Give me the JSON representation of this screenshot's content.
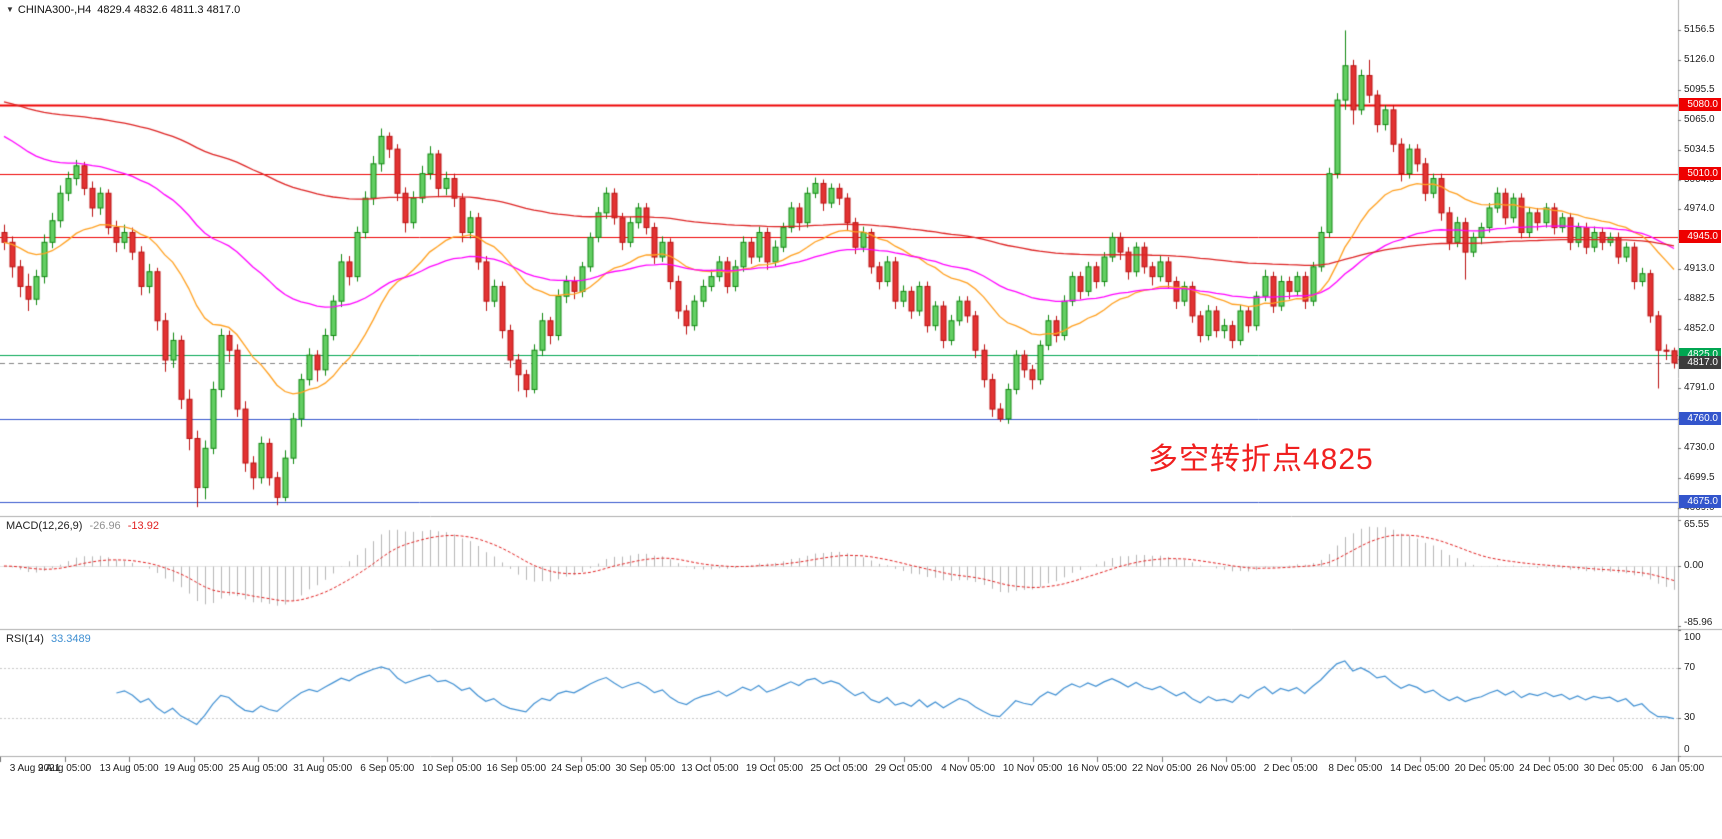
{
  "header": {
    "collapse_arrow": "▼",
    "symbol": "CHINA300-,H4",
    "ohlc": "4829.4 4832.6 4811.3 4817.0"
  },
  "chart_data": {
    "type": "candlestick",
    "symbol": "CHINA300-",
    "timeframe": "H4",
    "last_values": {
      "open": 4829.4,
      "high": 4832.6,
      "low": 4811.3,
      "close": 4817.0
    },
    "annotation": {
      "text": "多空转折点4825",
      "color": "#f02020"
    },
    "candle_colors": {
      "up_fill": "#63cf63",
      "up_border": "#118811",
      "down_fill": "#e23333",
      "down_border": "#bb1111"
    },
    "price_axis": {
      "ticks": [
        {
          "label": "5156.5",
          "value": 5156.5
        },
        {
          "label": "5126.0",
          "value": 5126.0
        },
        {
          "label": "5095.5",
          "value": 5095.5
        },
        {
          "label": "5065.0",
          "value": 5065.0
        },
        {
          "label": "5034.5",
          "value": 5034.5
        },
        {
          "label": "5004.0",
          "value": 5004.0
        },
        {
          "label": "4974.0",
          "value": 4974.0
        },
        {
          "label": "4943.5",
          "value": 4943.5
        },
        {
          "label": "4913.0",
          "value": 4913.0
        },
        {
          "label": "4882.5",
          "value": 4882.5
        },
        {
          "label": "4852.0",
          "value": 4852.0
        },
        {
          "label": "4821.5",
          "value": 4821.5
        },
        {
          "label": "4791.0",
          "value": 4791.0
        },
        {
          "label": "4760.5",
          "value": 4760.5
        },
        {
          "label": "4730.0",
          "value": 4730.0
        },
        {
          "label": "4699.5",
          "value": 4699.5
        },
        {
          "label": "4669.0",
          "value": 4669.0
        }
      ]
    },
    "time_axis": {
      "labels": [
        "3 Aug 2021",
        "9 Aug 05:00",
        "13 Aug 05:00",
        "19 Aug 05:00",
        "25 Aug 05:00",
        "31 Aug 05:00",
        "6 Sep 05:00",
        "10 Sep 05:00",
        "16 Sep 05:00",
        "24 Sep 05:00",
        "30 Sep 05:00",
        "13 Oct 05:00",
        "19 Oct 05:00",
        "25 Oct 05:00",
        "29 Oct 05:00",
        "4 Nov 05:00",
        "10 Nov 05:00",
        "16 Nov 05:00",
        "22 Nov 05:00",
        "26 Nov 05:00",
        "2 Dec 05:00",
        "8 Dec 05:00",
        "14 Dec 05:00",
        "20 Dec 05:00",
        "24 Dec 05:00",
        "30 Dec 05:00",
        "6 Jan 05:00"
      ]
    },
    "hlines": [
      {
        "price": 5080.0,
        "label": "5080.0",
        "color": "#ee0000",
        "width": 2
      },
      {
        "price": 5010.0,
        "label": "5010.0",
        "color": "#ee0000",
        "width": 1
      },
      {
        "price": 4945.0,
        "label": "4945.0",
        "color": "#ee0000",
        "width": 1
      },
      {
        "price": 4825.0,
        "label": "4825.0",
        "color": "#00a651",
        "width": 1
      },
      {
        "price": 4760.0,
        "label": "4760.0",
        "color": "#3355cc",
        "width": 1
      },
      {
        "price": 4675.0,
        "label": "4675.0",
        "color": "#3355cc",
        "width": 1
      }
    ],
    "current_price": {
      "value": 4817.0,
      "label": "4817.0",
      "color": "#3c3c3c"
    },
    "moving_averages": [
      {
        "name": "ma-fast-orange",
        "period": 22,
        "color": "#ffa020",
        "seed": 4940
      },
      {
        "name": "ma-mid-magenta",
        "period": 55,
        "color": "#ff00ff",
        "seed": 5052
      },
      {
        "name": "ma-slow-red",
        "period": 160,
        "color": "#dd2222",
        "seed": 5085
      }
    ],
    "indicators": {
      "macd": {
        "label": "MACD(12,26,9)",
        "value_main": "-26.96",
        "value_signal": "-13.92",
        "value_main_color": "#909090",
        "value_signal_color": "#e02020",
        "histogram_color": "#b6b6b6",
        "signal_color": "#e02020",
        "axis_labels": [
          "65.55",
          "0.00",
          "-85.96"
        ],
        "axis_values": [
          65.55,
          0,
          -85.96
        ]
      },
      "rsi": {
        "label": "RSI(14)",
        "value": "33.3489",
        "line_color": "#3f8fd2",
        "levels": [
          70,
          30
        ],
        "axis_labels": [
          "100",
          "70",
          "30",
          "0"
        ],
        "axis_values": [
          100,
          70,
          30,
          0
        ]
      }
    },
    "candles": [
      [
        4950,
        4958,
        4932,
        4940
      ],
      [
        4940,
        4946,
        4904,
        4915
      ],
      [
        4915,
        4922,
        4884,
        4895
      ],
      [
        4895,
        4908,
        4870,
        4882
      ],
      [
        4882,
        4912,
        4876,
        4905
      ],
      [
        4905,
        4948,
        4898,
        4940
      ],
      [
        4940,
        4970,
        4934,
        4962
      ],
      [
        4962,
        4998,
        4955,
        4990
      ],
      [
        4990,
        5012,
        4982,
        5005
      ],
      [
        5005,
        5024,
        4998,
        5018
      ],
      [
        5018,
        5022,
        4988,
        4995
      ],
      [
        4995,
        5002,
        4966,
        4975
      ],
      [
        4975,
        4996,
        4968,
        4990
      ],
      [
        4990,
        4994,
        4948,
        4955
      ],
      [
        4955,
        4962,
        4930,
        4940
      ],
      [
        4940,
        4958,
        4933,
        4950
      ],
      [
        4950,
        4955,
        4922,
        4930
      ],
      [
        4930,
        4936,
        4886,
        4895
      ],
      [
        4895,
        4918,
        4888,
        4910
      ],
      [
        4910,
        4914,
        4850,
        4860
      ],
      [
        4860,
        4868,
        4808,
        4820
      ],
      [
        4820,
        4848,
        4812,
        4840
      ],
      [
        4840,
        4845,
        4770,
        4780
      ],
      [
        4780,
        4790,
        4728,
        4740
      ],
      [
        4740,
        4748,
        4670,
        4690
      ],
      [
        4690,
        4738,
        4678,
        4730
      ],
      [
        4730,
        4798,
        4724,
        4790
      ],
      [
        4790,
        4852,
        4782,
        4845
      ],
      [
        4845,
        4850,
        4818,
        4830
      ],
      [
        4830,
        4836,
        4762,
        4770
      ],
      [
        4770,
        4778,
        4706,
        4715
      ],
      [
        4715,
        4722,
        4688,
        4700
      ],
      [
        4700,
        4742,
        4694,
        4735
      ],
      [
        4735,
        4740,
        4692,
        4700
      ],
      [
        4700,
        4706,
        4672,
        4680
      ],
      [
        4680,
        4728,
        4676,
        4720
      ],
      [
        4720,
        4766,
        4714,
        4760
      ],
      [
        4760,
        4806,
        4752,
        4800
      ],
      [
        4800,
        4832,
        4794,
        4825
      ],
      [
        4825,
        4830,
        4798,
        4810
      ],
      [
        4810,
        4852,
        4804,
        4845
      ],
      [
        4845,
        4886,
        4840,
        4880
      ],
      [
        4880,
        4928,
        4874,
        4920
      ],
      [
        4920,
        4926,
        4896,
        4905
      ],
      [
        4905,
        4956,
        4900,
        4950
      ],
      [
        4950,
        4992,
        4944,
        4985
      ],
      [
        4985,
        5028,
        4978,
        5020
      ],
      [
        5020,
        5056,
        5012,
        5048
      ],
      [
        5048,
        5052,
        5026,
        5035
      ],
      [
        5035,
        5040,
        4982,
        4990
      ],
      [
        4990,
        4996,
        4950,
        4960
      ],
      [
        4960,
        4992,
        4954,
        4985
      ],
      [
        4985,
        5018,
        4980,
        5010
      ],
      [
        5010,
        5038,
        5004,
        5030
      ],
      [
        5030,
        5034,
        4986,
        4995
      ],
      [
        4995,
        5012,
        4988,
        5005
      ],
      [
        5005,
        5010,
        4976,
        4985
      ],
      [
        4985,
        4990,
        4940,
        4950
      ],
      [
        4950,
        4972,
        4944,
        4965
      ],
      [
        4965,
        4970,
        4912,
        4920
      ],
      [
        4920,
        4926,
        4870,
        4880
      ],
      [
        4880,
        4902,
        4874,
        4895
      ],
      [
        4895,
        4900,
        4842,
        4850
      ],
      [
        4850,
        4856,
        4812,
        4820
      ],
      [
        4820,
        4826,
        4788,
        4805
      ],
      [
        4805,
        4810,
        4782,
        4790
      ],
      [
        4790,
        4836,
        4786,
        4830
      ],
      [
        4830,
        4868,
        4824,
        4860
      ],
      [
        4860,
        4864,
        4836,
        4845
      ],
      [
        4845,
        4892,
        4840,
        4885
      ],
      [
        4885,
        4906,
        4878,
        4900
      ],
      [
        4900,
        4905,
        4882,
        4890
      ],
      [
        4890,
        4920,
        4884,
        4915
      ],
      [
        4915,
        4950,
        4910,
        4945
      ],
      [
        4945,
        4976,
        4940,
        4970
      ],
      [
        4970,
        4996,
        4964,
        4990
      ],
      [
        4990,
        4995,
        4958,
        4965
      ],
      [
        4965,
        4970,
        4932,
        4940
      ],
      [
        4940,
        4966,
        4935,
        4960
      ],
      [
        4960,
        4980,
        4954,
        4975
      ],
      [
        4975,
        4980,
        4948,
        4955
      ],
      [
        4955,
        4960,
        4918,
        4925
      ],
      [
        4925,
        4946,
        4920,
        4940
      ],
      [
        4940,
        4944,
        4892,
        4900
      ],
      [
        4900,
        4906,
        4862,
        4870
      ],
      [
        4870,
        4876,
        4846,
        4855
      ],
      [
        4855,
        4886,
        4850,
        4880
      ],
      [
        4880,
        4902,
        4874,
        4895
      ],
      [
        4895,
        4912,
        4890,
        4905
      ],
      [
        4905,
        4926,
        4900,
        4920
      ],
      [
        4920,
        4925,
        4888,
        4895
      ],
      [
        4895,
        4922,
        4890,
        4915
      ],
      [
        4915,
        4946,
        4910,
        4940
      ],
      [
        4940,
        4945,
        4918,
        4925
      ],
      [
        4925,
        4956,
        4920,
        4950
      ],
      [
        4950,
        4955,
        4912,
        4920
      ],
      [
        4920,
        4942,
        4915,
        4935
      ],
      [
        4935,
        4960,
        4930,
        4955
      ],
      [
        4955,
        4981,
        4950,
        4975
      ],
      [
        4975,
        4980,
        4952,
        4960
      ],
      [
        4960,
        4996,
        4955,
        4990
      ],
      [
        4990,
        5006,
        4985,
        5000
      ],
      [
        5000,
        5004,
        4972,
        4980
      ],
      [
        4980,
        5000,
        4975,
        4995
      ],
      [
        4995,
        5000,
        4978,
        4985
      ],
      [
        4985,
        4990,
        4952,
        4960
      ],
      [
        4960,
        4965,
        4928,
        4935
      ],
      [
        4935,
        4956,
        4930,
        4950
      ],
      [
        4950,
        4954,
        4908,
        4915
      ],
      [
        4915,
        4920,
        4892,
        4900
      ],
      [
        4900,
        4926,
        4895,
        4920
      ],
      [
        4920,
        4925,
        4872,
        4880
      ],
      [
        4880,
        4896,
        4874,
        4890
      ],
      [
        4890,
        4895,
        4862,
        4870
      ],
      [
        4870,
        4900,
        4865,
        4895
      ],
      [
        4895,
        4900,
        4848,
        4855
      ],
      [
        4855,
        4880,
        4850,
        4875
      ],
      [
        4875,
        4880,
        4832,
        4840
      ],
      [
        4840,
        4866,
        4835,
        4860
      ],
      [
        4860,
        4885,
        4855,
        4880
      ],
      [
        4880,
        4885,
        4858,
        4865
      ],
      [
        4865,
        4870,
        4822,
        4830
      ],
      [
        4830,
        4836,
        4792,
        4800
      ],
      [
        4800,
        4806,
        4762,
        4770
      ],
      [
        4770,
        4776,
        4757,
        4760
      ],
      [
        4760,
        4796,
        4755,
        4790
      ],
      [
        4790,
        4830,
        4785,
        4825
      ],
      [
        4825,
        4830,
        4802,
        4810
      ],
      [
        4810,
        4815,
        4790,
        4800
      ],
      [
        4800,
        4840,
        4795,
        4835
      ],
      [
        4835,
        4866,
        4830,
        4860
      ],
      [
        4860,
        4865,
        4838,
        4845
      ],
      [
        4845,
        4886,
        4840,
        4880
      ],
      [
        4880,
        4910,
        4875,
        4905
      ],
      [
        4905,
        4910,
        4882,
        4890
      ],
      [
        4890,
        4920,
        4885,
        4915
      ],
      [
        4915,
        4920,
        4893,
        4900
      ],
      [
        4900,
        4930,
        4895,
        4925
      ],
      [
        4925,
        4950,
        4920,
        4945
      ],
      [
        4945,
        4950,
        4922,
        4930
      ],
      [
        4930,
        4935,
        4902,
        4910
      ],
      [
        4910,
        4940,
        4905,
        4935
      ],
      [
        4935,
        4940,
        4908,
        4915
      ],
      [
        4915,
        4920,
        4896,
        4905
      ],
      [
        4905,
        4926,
        4900,
        4920
      ],
      [
        4920,
        4925,
        4893,
        4900
      ],
      [
        4900,
        4905,
        4872,
        4880
      ],
      [
        4880,
        4900,
        4875,
        4895
      ],
      [
        4895,
        4900,
        4858,
        4865
      ],
      [
        4865,
        4870,
        4838,
        4845
      ],
      [
        4845,
        4876,
        4840,
        4870
      ],
      [
        4870,
        4875,
        4843,
        4850
      ],
      [
        4850,
        4862,
        4842,
        4855
      ],
      [
        4855,
        4860,
        4832,
        4840
      ],
      [
        4840,
        4876,
        4835,
        4870
      ],
      [
        4870,
        4875,
        4848,
        4855
      ],
      [
        4855,
        4890,
        4850,
        4885
      ],
      [
        4885,
        4912,
        4880,
        4905
      ],
      [
        4905,
        4910,
        4868,
        4875
      ],
      [
        4875,
        4906,
        4870,
        4900
      ],
      [
        4900,
        4905,
        4882,
        4890
      ],
      [
        4890,
        4910,
        4885,
        4905
      ],
      [
        4905,
        4910,
        4872,
        4880
      ],
      [
        4880,
        4920,
        4875,
        4915
      ],
      [
        4915,
        4956,
        4910,
        4950
      ],
      [
        4950,
        5016,
        4945,
        5010
      ],
      [
        5010,
        5092,
        5005,
        5085
      ],
      [
        5085,
        5156,
        5075,
        5120
      ],
      [
        5120,
        5126,
        5060,
        5075
      ],
      [
        5075,
        5116,
        5070,
        5110
      ],
      [
        5110,
        5126,
        5082,
        5090
      ],
      [
        5090,
        5095,
        5052,
        5060
      ],
      [
        5060,
        5080,
        5054,
        5075
      ],
      [
        5075,
        5080,
        5032,
        5040
      ],
      [
        5040,
        5046,
        5002,
        5010
      ],
      [
        5010,
        5040,
        5005,
        5035
      ],
      [
        5035,
        5040,
        5012,
        5020
      ],
      [
        5020,
        5026,
        4982,
        4990
      ],
      [
        4990,
        5010,
        4985,
        5005
      ],
      [
        5005,
        5010,
        4962,
        4970
      ],
      [
        4970,
        4976,
        4932,
        4940
      ],
      [
        4940,
        4966,
        4935,
        4960
      ],
      [
        4960,
        4965,
        4902,
        4930
      ],
      [
        4930,
        4950,
        4925,
        4945
      ],
      [
        4945,
        4960,
        4938,
        4955
      ],
      [
        4955,
        4980,
        4950,
        4975
      ],
      [
        4975,
        4996,
        4970,
        4990
      ],
      [
        4990,
        4995,
        4958,
        4965
      ],
      [
        4965,
        4990,
        4960,
        4985
      ],
      [
        4985,
        4990,
        4944,
        4950
      ],
      [
        4950,
        4976,
        4945,
        4970
      ],
      [
        4970,
        4975,
        4952,
        4960
      ],
      [
        4960,
        4980,
        4955,
        4975
      ],
      [
        4975,
        4980,
        4948,
        4955
      ],
      [
        4955,
        4970,
        4950,
        4965
      ],
      [
        4965,
        4970,
        4932,
        4940
      ],
      [
        4940,
        4960,
        4935,
        4955
      ],
      [
        4955,
        4960,
        4928,
        4935
      ],
      [
        4935,
        4956,
        4930,
        4950
      ],
      [
        4950,
        4955,
        4932,
        4940
      ],
      [
        4940,
        4950,
        4936,
        4945
      ],
      [
        4945,
        4950,
        4918,
        4925
      ],
      [
        4925,
        4940,
        4920,
        4935
      ],
      [
        4935,
        4940,
        4892,
        4900
      ],
      [
        4900,
        4914,
        4895,
        4908
      ],
      [
        4908,
        4912,
        4858,
        4865
      ],
      [
        4865,
        4870,
        4791,
        4830
      ],
      [
        4830,
        4836,
        4820,
        4829.4
      ],
      [
        4829.4,
        4832.6,
        4811.3,
        4817
      ]
    ]
  }
}
